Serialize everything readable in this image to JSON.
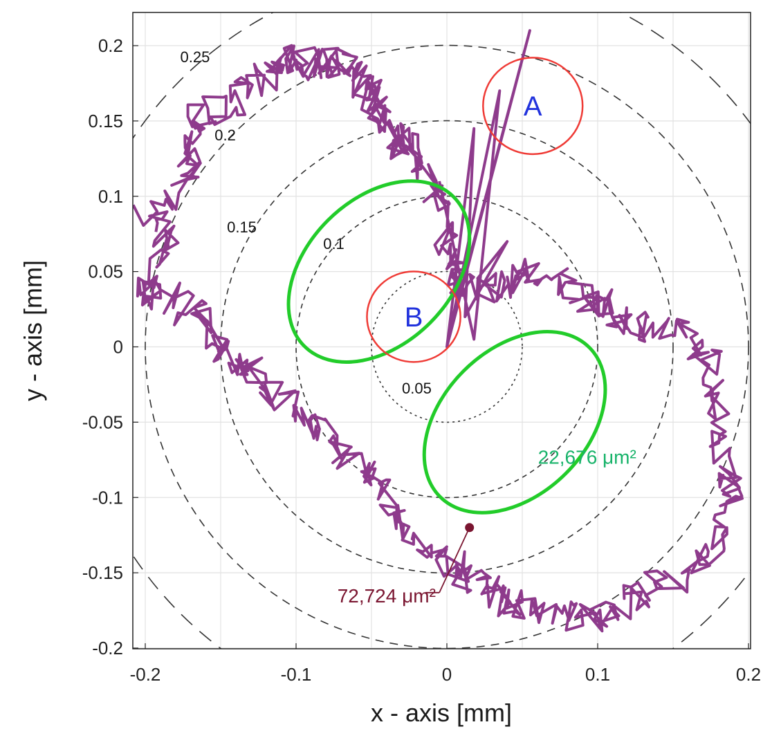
{
  "chart_data": {
    "type": "scatter",
    "xlabel": "x - axis [mm]",
    "ylabel": "y - axis [mm]",
    "xlim": [
      -0.2,
      0.2
    ],
    "ylim": [
      -0.2,
      0.2
    ],
    "x_ticks": [
      -0.2,
      -0.1,
      0,
      0.1,
      0.2
    ],
    "x_tick_labels": [
      "-0.2",
      "-0.1",
      "0",
      "0.1",
      "0.2"
    ],
    "y_ticks": [
      0.2,
      0.15,
      0.1,
      0.05,
      0,
      -0.05,
      -0.1,
      -0.15,
      -0.2
    ],
    "y_tick_labels": [
      "0.2",
      "0.15",
      "0.1",
      "0.05",
      "0",
      "-0.05",
      "-0.1",
      "-0.15",
      "-0.2"
    ],
    "grid": true,
    "rings": [
      {
        "radius": 0.05,
        "label": "0.05",
        "label_at": [
          -0.02,
          -0.031
        ]
      },
      {
        "radius": 0.1,
        "label": "0.1",
        "label_at": [
          -0.075,
          0.065
        ]
      },
      {
        "radius": 0.15,
        "label": "0.15",
        "label_at": [
          -0.136,
          0.076
        ]
      },
      {
        "radius": 0.2,
        "label": "0.2",
        "label_at": [
          -0.147,
          0.137
        ]
      },
      {
        "radius": 0.25,
        "label": "0.25",
        "label_at": [
          -0.167,
          0.189
        ]
      }
    ],
    "trajectory": {
      "color": "#8e3b8c",
      "seed": 7,
      "base_points": [
        [
          -0.2,
          0.085
        ],
        [
          -0.17,
          0.113
        ],
        [
          -0.172,
          0.137
        ],
        [
          -0.165,
          0.155
        ],
        [
          -0.14,
          0.16
        ],
        [
          -0.12,
          0.18
        ],
        [
          -0.11,
          0.19
        ],
        [
          -0.095,
          0.19
        ],
        [
          -0.08,
          0.187
        ],
        [
          -0.07,
          0.19
        ],
        [
          -0.06,
          0.175
        ],
        [
          -0.05,
          0.17
        ],
        [
          -0.045,
          0.155
        ],
        [
          -0.035,
          0.14
        ],
        [
          -0.03,
          0.135
        ],
        [
          -0.015,
          0.125
        ],
        [
          -0.005,
          0.095
        ],
        [
          0.0,
          0.07
        ],
        [
          0.005,
          0.05
        ],
        [
          0.012,
          0.04
        ],
        [
          0.035,
          0.04
        ],
        [
          0.05,
          0.05
        ],
        [
          0.08,
          0.04
        ],
        [
          0.095,
          0.032
        ],
        [
          0.11,
          0.022
        ],
        [
          0.13,
          0.015
        ],
        [
          0.155,
          0.008
        ],
        [
          0.175,
          -0.01
        ],
        [
          0.18,
          -0.04
        ],
        [
          0.185,
          -0.08
        ],
        [
          0.19,
          -0.1
        ],
        [
          0.18,
          -0.13
        ],
        [
          0.16,
          -0.15
        ],
        [
          0.13,
          -0.16
        ],
        [
          0.11,
          -0.175
        ],
        [
          0.09,
          -0.18
        ],
        [
          0.06,
          -0.175
        ],
        [
          0.04,
          -0.17
        ],
        [
          0.025,
          -0.16
        ],
        [
          0.01,
          -0.15
        ],
        [
          -0.005,
          -0.14
        ],
        [
          -0.025,
          -0.125
        ],
        [
          -0.04,
          -0.1
        ],
        [
          -0.055,
          -0.085
        ],
        [
          -0.075,
          -0.06
        ],
        [
          -0.095,
          -0.05
        ],
        [
          -0.115,
          -0.03
        ],
        [
          -0.135,
          -0.015
        ],
        [
          -0.15,
          0.0
        ],
        [
          -0.165,
          0.02
        ],
        [
          -0.19,
          0.035
        ],
        [
          -0.2,
          0.04
        ],
        [
          -0.18,
          0.07
        ],
        [
          -0.2,
          0.085
        ]
      ],
      "spikes": [
        [
          -0.005,
          0.11
        ],
        [
          0.018,
          0.005
        ],
        [
          0.035,
          0.17
        ],
        [
          0.002,
          0.01
        ],
        [
          0.055,
          0.21
        ],
        [
          0.0,
          0.0
        ],
        [
          0.018,
          0.145
        ],
        [
          0.012,
          0.02
        ],
        [
          0.04,
          0.07
        ],
        [
          0.02,
          0.045
        ]
      ]
    },
    "regions": [
      {
        "label": "A",
        "cx": 0.057,
        "cy": 0.16,
        "rx": 0.033,
        "ry": 0.032,
        "color": "#ef3b36",
        "label_color": "#2233dd"
      },
      {
        "label": "B",
        "cx": -0.022,
        "cy": 0.02,
        "rx": 0.031,
        "ry": 0.03,
        "color": "#ef3b36",
        "label_color": "#2233dd"
      }
    ],
    "lobes": [
      {
        "cx": -0.045,
        "cy": 0.05,
        "rx": 0.07,
        "ry": 0.048,
        "angle": -45,
        "color": "#22cc2a"
      },
      {
        "cx": 0.045,
        "cy": -0.05,
        "rx": 0.07,
        "ry": 0.048,
        "angle": -45,
        "color": "#22cc2a"
      }
    ],
    "annotations": [
      {
        "text": "22,676 μm²",
        "x": 0.093,
        "y": -0.073,
        "color": "#18b36a"
      },
      {
        "text": "72,724 μm²",
        "x": -0.04,
        "y": -0.165,
        "color": "#7a1530",
        "point": [
          0.015,
          -0.12
        ],
        "leader_from": [
          -0.005,
          -0.165
        ]
      }
    ]
  }
}
